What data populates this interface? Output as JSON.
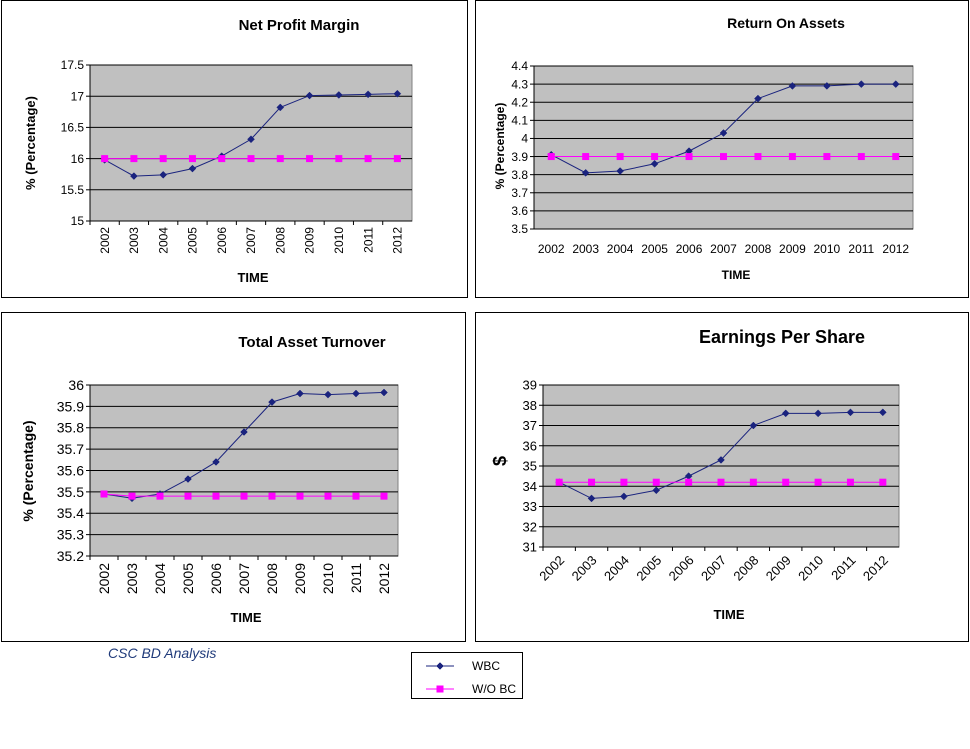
{
  "footer_note": "CSC BD Analysis",
  "legend": [
    {
      "label": "WBC",
      "color": "#1a237e",
      "marker": "diamond"
    },
    {
      "label": "W/O BC",
      "color": "#ff00ff",
      "marker": "square"
    }
  ],
  "chart_data": [
    {
      "type": "line",
      "title": "Net Profit Margin",
      "xlabel": "TIME",
      "ylabel": "% (Percentage)",
      "categories": [
        "2002",
        "2003",
        "2004",
        "2005",
        "2006",
        "2007",
        "2008",
        "2009",
        "2010",
        "2011",
        "2012"
      ],
      "ylim": [
        15,
        17.5
      ],
      "yticks": [
        "15",
        "15.5",
        "16",
        "16.5",
        "17",
        "17.5"
      ],
      "grid": true,
      "series": [
        {
          "name": "WBC",
          "color": "#1a237e",
          "marker": "diamond",
          "values": [
            15.98,
            15.72,
            15.74,
            15.84,
            16.04,
            16.31,
            16.82,
            17.01,
            17.02,
            17.03,
            17.04
          ]
        },
        {
          "name": "W/O BC",
          "color": "#ff00ff",
          "marker": "square",
          "values": [
            16.0,
            16.0,
            16.0,
            16.0,
            16.0,
            16.0,
            16.0,
            16.0,
            16.0,
            16.0,
            16.0
          ]
        }
      ]
    },
    {
      "type": "line",
      "title": "Return On Assets",
      "xlabel": "TIME",
      "ylabel": "% (Percentage)",
      "categories": [
        "2002",
        "2003",
        "2004",
        "2005",
        "2006",
        "2007",
        "2008",
        "2009",
        "2010",
        "2011",
        "2012"
      ],
      "ylim": [
        3.5,
        4.4
      ],
      "yticks": [
        "3.5",
        "3.6",
        "3.7",
        "3.8",
        "3.9",
        "4",
        "4.1",
        "4.2",
        "4.3",
        "4.4"
      ],
      "grid": true,
      "series": [
        {
          "name": "WBC",
          "color": "#1a237e",
          "marker": "diamond",
          "values": [
            3.91,
            3.81,
            3.82,
            3.86,
            3.93,
            4.03,
            4.22,
            4.29,
            4.29,
            4.3,
            4.3
          ]
        },
        {
          "name": "W/O BC",
          "color": "#ff00ff",
          "marker": "square",
          "values": [
            3.9,
            3.9,
            3.9,
            3.9,
            3.9,
            3.9,
            3.9,
            3.9,
            3.9,
            3.9,
            3.9
          ]
        }
      ]
    },
    {
      "type": "line",
      "title": "Total Asset Turnover",
      "xlabel": "TIME",
      "ylabel": "% (Percentage)",
      "categories": [
        "2002",
        "2003",
        "2004",
        "2005",
        "2006",
        "2007",
        "2008",
        "2009",
        "2010",
        "2011",
        "2012"
      ],
      "ylim": [
        35.2,
        36
      ],
      "yticks": [
        "35.2",
        "35.3",
        "35.4",
        "35.5",
        "35.6",
        "35.7",
        "35.8",
        "35.9",
        "36"
      ],
      "grid": true,
      "series": [
        {
          "name": "WBC",
          "color": "#1a237e",
          "marker": "diamond",
          "values": [
            35.49,
            35.47,
            35.49,
            35.56,
            35.64,
            35.78,
            35.92,
            35.96,
            35.955,
            35.96,
            35.965
          ]
        },
        {
          "name": "W/O BC",
          "color": "#ff00ff",
          "marker": "square",
          "values": [
            35.49,
            35.48,
            35.48,
            35.48,
            35.48,
            35.48,
            35.48,
            35.48,
            35.48,
            35.48,
            35.48
          ]
        }
      ]
    },
    {
      "type": "line",
      "title": "Earnings Per Share",
      "xlabel": "TIME",
      "ylabel": "$",
      "categories": [
        "2002",
        "2003",
        "2004",
        "2005",
        "2006",
        "2007",
        "2008",
        "2009",
        "2010",
        "2011",
        "2012"
      ],
      "ylim": [
        31,
        39
      ],
      "yticks": [
        "31",
        "32",
        "33",
        "34",
        "35",
        "36",
        "37",
        "38",
        "39"
      ],
      "grid": true,
      "series": [
        {
          "name": "WBC",
          "color": "#1a237e",
          "marker": "diamond",
          "values": [
            34.2,
            33.4,
            33.5,
            33.8,
            34.5,
            35.3,
            37.0,
            37.6,
            37.6,
            37.65,
            37.65
          ]
        },
        {
          "name": "W/O BC",
          "color": "#ff00ff",
          "marker": "square",
          "values": [
            34.2,
            34.2,
            34.2,
            34.2,
            34.2,
            34.2,
            34.2,
            34.2,
            34.2,
            34.2,
            34.2
          ]
        }
      ]
    }
  ]
}
